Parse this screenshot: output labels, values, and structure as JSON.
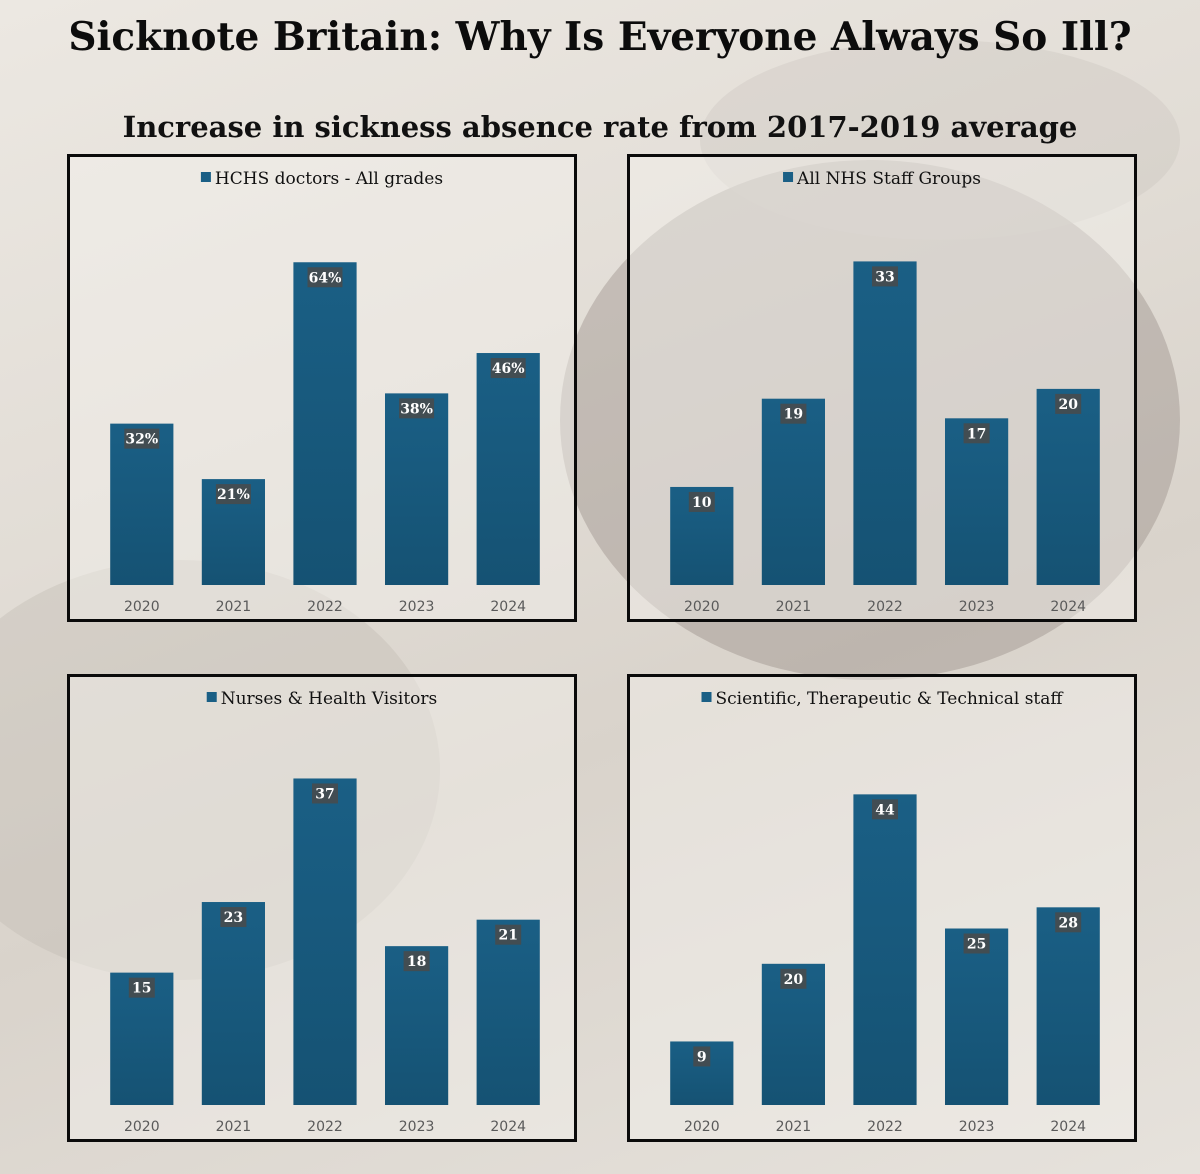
{
  "title": "Sicknote Britain: Why Is Everyone Always So Ill?",
  "subtitle": "Increase in sickness absence rate from 2017-2019 average",
  "colors": {
    "bar": "#1a5f85",
    "bar_dark": "#155273",
    "label_bg": "#4a4a4a"
  },
  "chart_data": [
    {
      "type": "bar",
      "legend": "HCHS doctors - All grades",
      "categories": [
        "2020",
        "2021",
        "2022",
        "2023",
        "2024"
      ],
      "values": [
        32,
        21,
        64,
        38,
        46
      ],
      "data_labels": [
        "32%",
        "21%",
        "64%",
        "38%",
        "46%"
      ],
      "ylim": [
        0,
        70
      ],
      "legend_position": "top"
    },
    {
      "type": "bar",
      "legend": "All NHS Staff Groups",
      "categories": [
        "2020",
        "2021",
        "2022",
        "2023",
        "2024"
      ],
      "values": [
        10,
        19,
        33,
        17,
        20
      ],
      "data_labels": [
        "10",
        "19",
        "33",
        "17",
        "20"
      ],
      "ylim": [
        0,
        36
      ],
      "legend_position": "top"
    },
    {
      "type": "bar",
      "legend": "Nurses & Health Visitors",
      "categories": [
        "2020",
        "2021",
        "2022",
        "2023",
        "2024"
      ],
      "values": [
        15,
        23,
        37,
        18,
        21
      ],
      "data_labels": [
        "15",
        "23",
        "37",
        "18",
        "21"
      ],
      "ylim": [
        0,
        40
      ],
      "legend_position": "top"
    },
    {
      "type": "bar",
      "legend": "Scientific, Therapeutic & Technical staff",
      "categories": [
        "2020",
        "2021",
        "2022",
        "2023",
        "2024"
      ],
      "values": [
        9,
        20,
        44,
        25,
        28
      ],
      "data_labels": [
        "9",
        "20",
        "44",
        "25",
        "28"
      ],
      "ylim": [
        0,
        50
      ],
      "legend_position": "top"
    }
  ]
}
